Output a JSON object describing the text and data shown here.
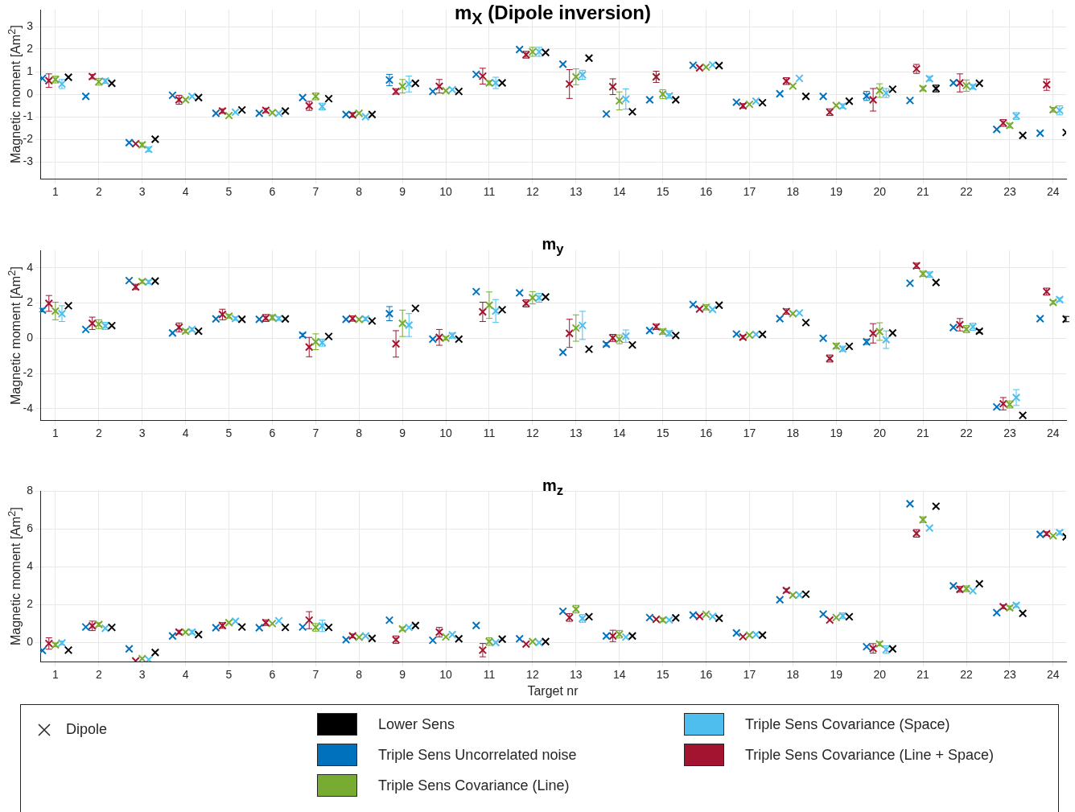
{
  "chart_data": [
    {
      "type": "scatter",
      "title": "m$_{X}$ (Dipole inversion)",
      "ylabel": "Magnetic moment [Am$^{2}$]",
      "xlim": [
        0.65,
        24.3
      ],
      "xticks": [
        1,
        2,
        3,
        4,
        5,
        6,
        7,
        8,
        9,
        10,
        11,
        12,
        13,
        14,
        15,
        16,
        17,
        18,
        19,
        20,
        21,
        22,
        23,
        24
      ],
      "ylim": [
        -3.75,
        3.75
      ],
      "yticks": [
        -3,
        -2,
        -1,
        0,
        1,
        2,
        3
      ],
      "grid": true,
      "marker": "cross",
      "series": [
        {
          "color": "#000000",
          "x": [
            1.3,
            2.3,
            3.3,
            4.3,
            5.3,
            6.3,
            7.3,
            8.3,
            9.3,
            10.3,
            11.3,
            12.3,
            13.3,
            14.3,
            15.3,
            16.3,
            17.3,
            18.3,
            19.3,
            20.3,
            21.3,
            22.3,
            23.3,
            24.3
          ],
          "values": [
            0.75,
            0.48,
            -2.0,
            -0.15,
            -0.7,
            -0.75,
            -0.2,
            -0.9,
            0.48,
            0.12,
            0.5,
            1.85,
            1.6,
            -0.78,
            -0.25,
            1.27,
            -0.38,
            -0.1,
            -0.31,
            0.22,
            0.25,
            0.48,
            -1.83,
            -1.7
          ],
          "errors": [
            null,
            null,
            null,
            null,
            null,
            null,
            null,
            null,
            null,
            null,
            null,
            null,
            null,
            null,
            null,
            null,
            null,
            null,
            null,
            null,
            0.15,
            null,
            null,
            null
          ]
        },
        {
          "color": "#0072bd",
          "x": [
            0.7,
            1.7,
            2.7,
            3.7,
            4.7,
            5.7,
            6.7,
            7.7,
            8.7,
            9.7,
            10.7,
            11.7,
            12.7,
            13.7,
            14.7,
            15.7,
            16.7,
            17.7,
            18.7,
            19.7,
            20.7,
            21.7,
            22.7,
            23.7
          ],
          "values": [
            0.7,
            -0.1,
            -2.15,
            -0.05,
            -0.85,
            -0.85,
            -0.15,
            -0.9,
            0.63,
            0.12,
            0.88,
            1.98,
            1.33,
            -0.88,
            -0.25,
            1.28,
            -0.36,
            0.02,
            -0.1,
            -0.08,
            -0.28,
            0.5,
            -1.56,
            -1.73
          ],
          "errors": [
            null,
            null,
            null,
            null,
            null,
            null,
            null,
            null,
            0.25,
            null,
            null,
            null,
            null,
            null,
            null,
            null,
            null,
            null,
            null,
            0.2,
            null,
            null,
            null,
            null
          ]
        },
        {
          "color": "#77ac30",
          "x": [
            1,
            2,
            3,
            4,
            5,
            6,
            7,
            8,
            9,
            10,
            11,
            12,
            13,
            14,
            15,
            16,
            17,
            18,
            19,
            20,
            21,
            22,
            23,
            24
          ],
          "values": [
            0.65,
            0.55,
            -2.25,
            -0.25,
            -0.95,
            -0.82,
            -0.1,
            -0.85,
            0.35,
            0.15,
            0.5,
            1.88,
            0.77,
            -0.3,
            0.0,
            1.2,
            -0.45,
            0.36,
            -0.5,
            0.16,
            0.25,
            0.38,
            -1.39,
            -0.69
          ],
          "errors": [
            0.15,
            0.15,
            0.1,
            null,
            null,
            null,
            0.15,
            null,
            0.3,
            null,
            0.1,
            0.2,
            0.35,
            0.4,
            0.2,
            null,
            null,
            null,
            null,
            0.3,
            0.1,
            0.25,
            0.1,
            0.1
          ]
        },
        {
          "color": "#4dbeee",
          "x": [
            1.15,
            2.15,
            3.15,
            4.15,
            5.15,
            6.15,
            7.15,
            8.15,
            9.15,
            10.15,
            11.15,
            12.15,
            13.15,
            14.15,
            15.15,
            16.15,
            17.15,
            18.15,
            19.15,
            20.15,
            21.15,
            22.15,
            23.15,
            24.15
          ],
          "values": [
            0.45,
            0.58,
            -2.45,
            -0.1,
            -0.8,
            -0.85,
            -0.55,
            -1.0,
            0.45,
            0.2,
            0.5,
            1.88,
            0.86,
            -0.22,
            -0.08,
            1.3,
            -0.31,
            0.7,
            -0.53,
            0.05,
            0.69,
            0.33,
            -0.97,
            -0.72
          ],
          "errors": [
            0.2,
            0.1,
            0.1,
            null,
            null,
            null,
            0.15,
            null,
            0.35,
            null,
            0.25,
            0.2,
            0.2,
            0.45,
            0.1,
            null,
            null,
            null,
            0.1,
            0.2,
            0.1,
            0.1,
            0.15,
            0.2
          ]
        },
        {
          "color": "#a2142f",
          "x": [
            0.85,
            1.85,
            2.85,
            3.85,
            4.85,
            5.85,
            6.85,
            7.85,
            8.85,
            9.85,
            10.85,
            11.85,
            12.85,
            13.85,
            14.85,
            15.85,
            16.85,
            17.85,
            18.85,
            19.85,
            20.85,
            21.85,
            22.85,
            23.85
          ],
          "values": [
            0.6,
            0.78,
            -2.2,
            -0.25,
            -0.75,
            -0.72,
            -0.52,
            -0.92,
            0.12,
            0.35,
            0.8,
            1.75,
            0.45,
            0.33,
            0.77,
            1.17,
            -0.52,
            0.58,
            -0.8,
            -0.25,
            1.12,
            0.5,
            -1.28,
            0.42
          ],
          "errors": [
            0.3,
            0.1,
            null,
            0.2,
            0.1,
            0.1,
            0.2,
            0.1,
            0.12,
            0.3,
            0.35,
            0.15,
            0.64,
            0.35,
            0.25,
            null,
            0.1,
            0.15,
            0.15,
            0.5,
            0.2,
            0.4,
            0.15,
            0.25
          ]
        }
      ]
    },
    {
      "type": "scatter",
      "title": "m$_{y}$",
      "ylabel": "Magnetic moment [Am$^{2}$]",
      "xlim": [
        0.65,
        24.3
      ],
      "xticks": [
        1,
        2,
        3,
        4,
        5,
        6,
        7,
        8,
        9,
        10,
        11,
        12,
        13,
        14,
        15,
        16,
        17,
        18,
        19,
        20,
        21,
        22,
        23,
        24
      ],
      "ylim": [
        -4.65,
        5
      ],
      "yticks": [
        -4,
        -2,
        0,
        2,
        4
      ],
      "grid": true,
      "marker": "cross",
      "series": [
        {
          "color": "#000000",
          "x": [
            1.3,
            2.3,
            3.3,
            4.3,
            5.3,
            6.3,
            7.3,
            8.3,
            9.3,
            10.3,
            11.3,
            12.3,
            13.3,
            14.3,
            15.3,
            16.3,
            17.3,
            18.3,
            19.3,
            20.3,
            21.3,
            22.3,
            23.3,
            24.3
          ],
          "values": [
            1.85,
            0.72,
            3.25,
            0.4,
            1.08,
            1.1,
            0.1,
            0.98,
            1.7,
            -0.05,
            1.62,
            2.35,
            -0.62,
            -0.38,
            0.16,
            1.88,
            0.22,
            0.89,
            -0.46,
            0.3,
            3.17,
            0.4,
            -4.38,
            1.09
          ],
          "errors": [
            null,
            null,
            null,
            null,
            null,
            null,
            null,
            null,
            null,
            null,
            null,
            null,
            null,
            null,
            null,
            null,
            null,
            null,
            null,
            null,
            null,
            0.1,
            null,
            0.15
          ]
        },
        {
          "color": "#0072bd",
          "x": [
            0.7,
            1.7,
            2.7,
            3.7,
            4.7,
            5.7,
            6.7,
            7.7,
            8.7,
            9.7,
            10.7,
            11.7,
            12.7,
            13.7,
            14.7,
            15.7,
            16.7,
            17.7,
            18.7,
            19.7,
            20.7,
            21.7,
            22.7,
            23.7
          ],
          "values": [
            1.6,
            0.5,
            3.28,
            0.3,
            1.1,
            1.08,
            0.18,
            1.08,
            1.4,
            -0.05,
            2.65,
            2.58,
            -0.8,
            -0.34,
            0.44,
            1.92,
            0.24,
            1.11,
            0.0,
            -0.2,
            3.13,
            0.61,
            -3.9,
            1.11
          ],
          "errors": [
            0.1,
            null,
            null,
            null,
            null,
            null,
            0.1,
            null,
            0.4,
            null,
            null,
            null,
            null,
            0.1,
            null,
            null,
            null,
            null,
            null,
            0.15,
            null,
            null,
            null,
            null
          ]
        },
        {
          "color": "#77ac30",
          "x": [
            1,
            2,
            3,
            4,
            5,
            6,
            7,
            8,
            9,
            10,
            11,
            12,
            13,
            14,
            15,
            16,
            17,
            18,
            19,
            20,
            21,
            22,
            23,
            24
          ],
          "values": [
            1.55,
            0.8,
            3.22,
            0.4,
            1.25,
            1.18,
            -0.2,
            1.07,
            0.85,
            0.0,
            1.88,
            2.3,
            0.58,
            -0.06,
            0.38,
            1.76,
            0.18,
            1.4,
            -0.44,
            0.38,
            3.66,
            0.52,
            -3.76,
            2.04
          ],
          "errors": [
            0.5,
            0.25,
            0.1,
            0.1,
            0.1,
            0.15,
            0.45,
            null,
            0.75,
            0.1,
            0.75,
            0.35,
            0.75,
            0.25,
            0.15,
            0.15,
            null,
            null,
            0.15,
            0.5,
            0.15,
            0.2,
            0.2,
            0.1
          ]
        },
        {
          "color": "#4dbeee",
          "x": [
            1.15,
            2.15,
            3.15,
            4.15,
            5.15,
            6.15,
            7.15,
            8.15,
            9.15,
            10.15,
            11.15,
            12.15,
            13.15,
            14.15,
            15.15,
            16.15,
            17.15,
            18.15,
            19.15,
            20.15,
            21.15,
            22.15,
            23.15,
            24.15
          ],
          "values": [
            1.4,
            0.7,
            3.2,
            0.5,
            1.12,
            1.12,
            -0.25,
            1.1,
            0.75,
            0.15,
            1.55,
            2.3,
            0.73,
            0.12,
            0.28,
            1.64,
            0.22,
            1.44,
            -0.6,
            -0.08,
            3.62,
            0.65,
            -3.37,
            2.2
          ],
          "errors": [
            0.45,
            0.2,
            0.1,
            0.1,
            0.1,
            0.1,
            0.2,
            0.1,
            0.65,
            0.15,
            0.65,
            0.25,
            0.8,
            0.35,
            0.15,
            null,
            null,
            null,
            0.15,
            0.5,
            0.15,
            0.2,
            0.45,
            0.1
          ]
        },
        {
          "color": "#a2142f",
          "x": [
            0.85,
            1.85,
            2.85,
            3.85,
            4.85,
            5.85,
            6.85,
            7.85,
            8.85,
            9.85,
            10.85,
            11.85,
            12.85,
            13.85,
            14.85,
            15.85,
            16.85,
            17.85,
            18.85,
            19.85,
            20.85,
            21.85,
            22.85,
            23.85
          ],
          "values": [
            1.98,
            0.85,
            2.92,
            0.62,
            1.35,
            1.15,
            -0.5,
            1.12,
            -0.32,
            0.05,
            1.5,
            1.98,
            0.28,
            0.02,
            0.65,
            1.66,
            0.06,
            1.52,
            -1.15,
            0.28,
            4.12,
            0.77,
            -3.72,
            2.65
          ],
          "errors": [
            0.45,
            0.35,
            0.15,
            0.25,
            0.3,
            0.2,
            0.55,
            0.15,
            0.75,
            0.45,
            0.55,
            0.2,
            0.8,
            0.2,
            0.15,
            null,
            0.1,
            0.15,
            0.2,
            0.55,
            0.15,
            0.35,
            0.35,
            0.2
          ]
        }
      ]
    },
    {
      "type": "scatter",
      "title": "m$_{z}$",
      "ylabel": "Magnetic moment [Am$^{2}$]",
      "xlabel": "Target nr",
      "xlim": [
        0.65,
        24.3
      ],
      "xticks": [
        1,
        2,
        3,
        4,
        5,
        6,
        7,
        8,
        9,
        10,
        11,
        12,
        13,
        14,
        15,
        16,
        17,
        18,
        19,
        20,
        21,
        22,
        23,
        24
      ],
      "ylim": [
        -1,
        8
      ],
      "yticks": [
        0,
        2,
        4,
        6,
        8
      ],
      "grid": true,
      "marker": "cross",
      "legend": "bottom",
      "legend_title": "Dipole",
      "series": [
        {
          "name": "Lower Sens",
          "color": "#000000",
          "x": [
            1.3,
            2.3,
            3.3,
            4.3,
            5.3,
            6.3,
            7.3,
            8.3,
            9.3,
            10.3,
            11.3,
            12.3,
            13.3,
            14.3,
            15.3,
            16.3,
            17.3,
            18.3,
            19.3,
            20.3,
            21.3,
            22.3,
            23.3,
            24.3
          ],
          "values": [
            -0.4,
            0.8,
            -0.52,
            0.42,
            0.82,
            0.8,
            0.8,
            0.22,
            0.9,
            0.2,
            0.18,
            0.05,
            1.36,
            0.35,
            1.3,
            1.28,
            0.39,
            2.55,
            1.36,
            -0.33,
            7.19,
            3.1,
            1.54,
            5.58
          ]
        },
        {
          "name": "Triple Sens Uncorrelated noise",
          "color": "#0072bd",
          "x": [
            0.7,
            1.7,
            2.7,
            3.7,
            4.7,
            5.7,
            6.7,
            7.7,
            8.7,
            9.7,
            10.7,
            11.7,
            12.7,
            13.7,
            14.7,
            15.7,
            16.7,
            17.7,
            18.7,
            19.7,
            20.7,
            21.7,
            22.7,
            23.7
          ],
          "values": [
            -0.42,
            0.82,
            -0.33,
            0.35,
            0.78,
            0.78,
            0.82,
            0.15,
            1.18,
            0.12,
            0.9,
            0.2,
            1.65,
            0.35,
            1.32,
            1.45,
            0.51,
            2.26,
            1.5,
            -0.22,
            7.32,
            2.99,
            1.58,
            5.71
          ]
        },
        {
          "name": "Triple Sens Covariance (Line)",
          "color": "#77ac30",
          "x": [
            1,
            2,
            3,
            4,
            5,
            6,
            7,
            8,
            9,
            10,
            11,
            12,
            13,
            14,
            15,
            16,
            17,
            18,
            19,
            20,
            21,
            22,
            23,
            24
          ],
          "values": [
            -0.12,
            0.95,
            -0.85,
            0.55,
            1.05,
            1.0,
            0.8,
            0.28,
            0.72,
            0.3,
            0.05,
            0.05,
            1.76,
            0.44,
            1.19,
            1.49,
            0.39,
            2.5,
            1.32,
            -0.07,
            6.48,
            2.84,
            1.83,
            5.63
          ],
          "errors": [
            0.1,
            0.1,
            null,
            null,
            null,
            null,
            0.2,
            null,
            0.1,
            null,
            0.2,
            null,
            0.2,
            0.2,
            0.1,
            null,
            null,
            null,
            null,
            0.1,
            0.15,
            0.15,
            0.1,
            null
          ]
        },
        {
          "name": "Triple Sens Covariance (Space)",
          "color": "#4dbeee",
          "x": [
            1.15,
            2.15,
            3.15,
            4.15,
            5.15,
            6.15,
            7.15,
            8.15,
            9.15,
            10.15,
            11.15,
            12.15,
            13.15,
            14.15,
            15.15,
            16.15,
            17.15,
            18.15,
            19.15,
            20.15,
            21.15,
            22.15,
            23.15,
            24.15
          ],
          "values": [
            -0.02,
            0.75,
            -0.9,
            0.55,
            1.12,
            1.15,
            0.88,
            0.35,
            0.8,
            0.42,
            0.0,
            0.0,
            1.27,
            0.29,
            1.19,
            1.38,
            0.42,
            2.51,
            1.41,
            -0.37,
            6.04,
            2.73,
            1.96,
            5.8
          ],
          "errors": [
            0.1,
            null,
            null,
            0.1,
            null,
            null,
            0.3,
            null,
            null,
            null,
            null,
            null,
            0.2,
            null,
            null,
            null,
            null,
            null,
            0.15,
            0.2,
            null,
            null,
            0.1,
            0.1
          ]
        },
        {
          "name": "Triple Sens Covariance (Line + Space)",
          "color": "#a2142f",
          "x": [
            0.85,
            1.85,
            2.85,
            3.85,
            4.85,
            5.85,
            6.85,
            7.85,
            8.85,
            9.85,
            10.85,
            11.85,
            12.85,
            13.85,
            14.85,
            15.85,
            16.85,
            17.85,
            18.85,
            19.85,
            20.85,
            21.85,
            22.85,
            23.85
          ],
          "values": [
            -0.05,
            0.88,
            -0.97,
            0.55,
            0.9,
            1.05,
            1.18,
            0.35,
            0.15,
            0.55,
            -0.4,
            -0.08,
            1.32,
            0.35,
            1.23,
            1.38,
            0.31,
            2.75,
            1.19,
            -0.31,
            5.76,
            2.81,
            1.89,
            5.74
          ],
          "errors": [
            0.3,
            0.25,
            null,
            0.1,
            0.15,
            0.15,
            0.45,
            0.1,
            0.2,
            0.25,
            0.35,
            null,
            0.2,
            0.3,
            null,
            null,
            null,
            0.1,
            null,
            0.25,
            0.2,
            0.15,
            0.1,
            0.1
          ]
        }
      ]
    }
  ]
}
